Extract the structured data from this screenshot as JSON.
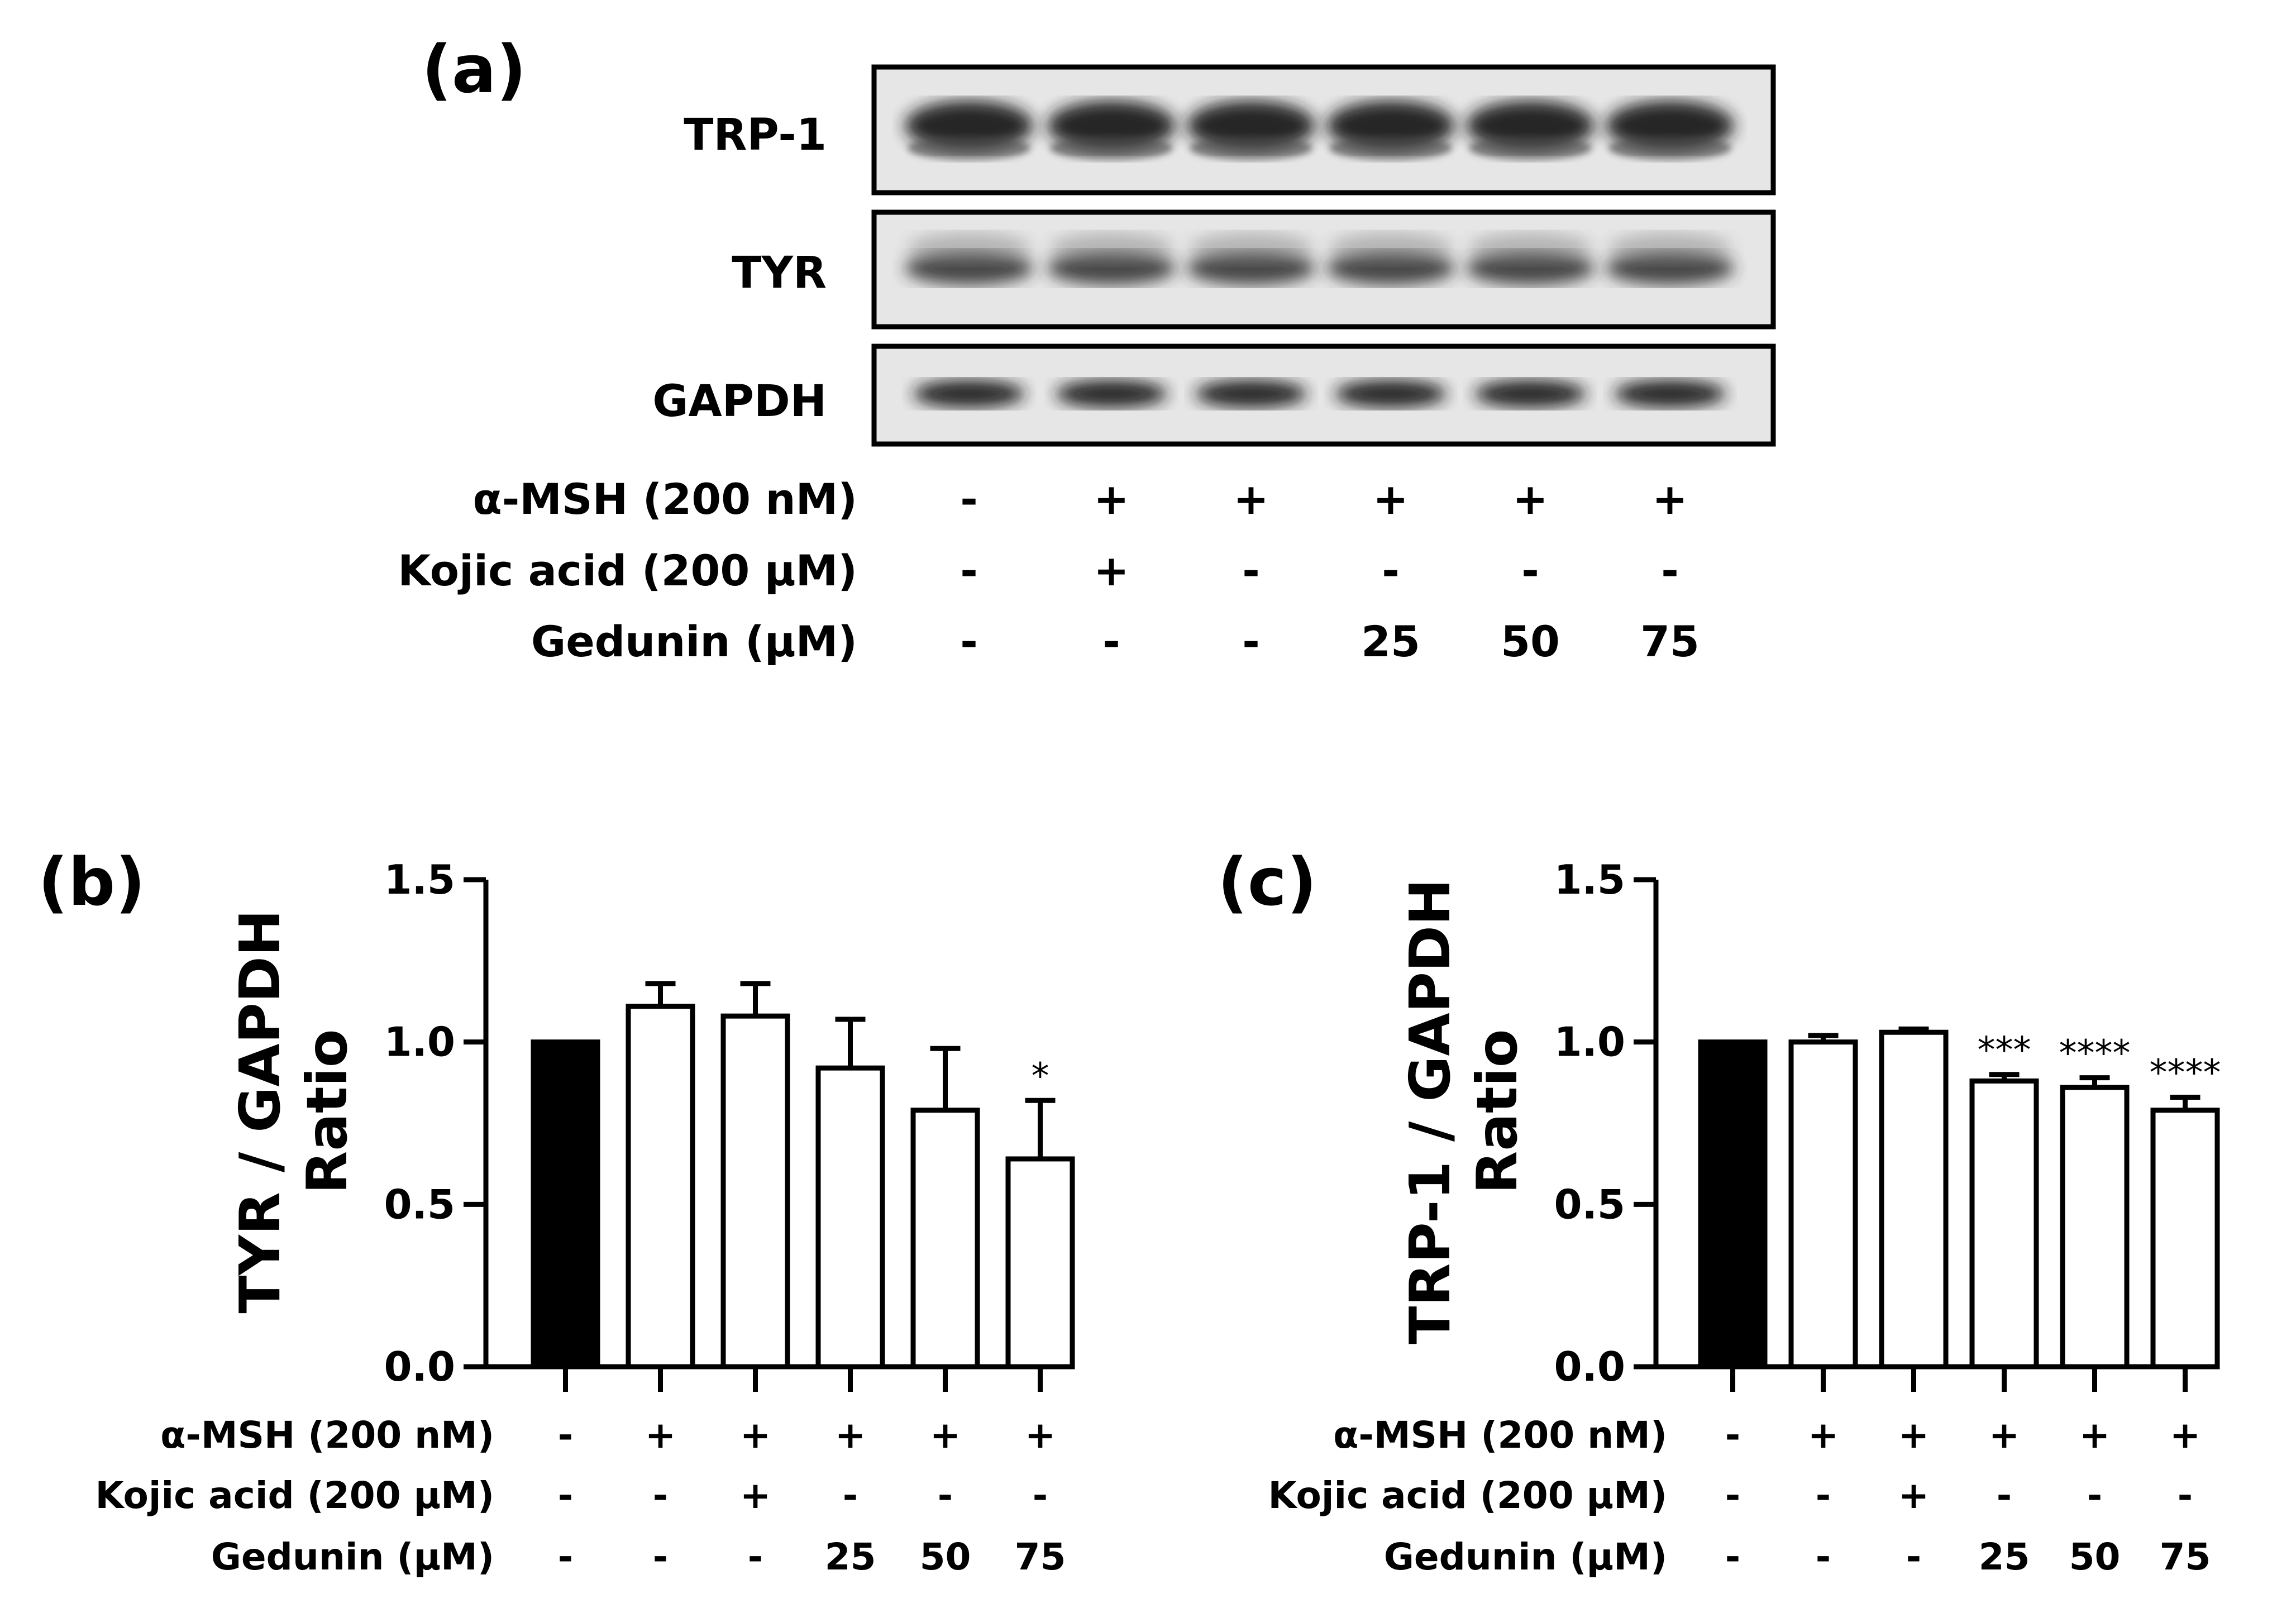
{
  "panel_a": {
    "label": "(a)",
    "blots": [
      {
        "name": "TRP-1"
      },
      {
        "name": "TYR"
      },
      {
        "name": "GAPDH"
      }
    ],
    "conditions": [
      {
        "label": "α-MSH (200 nM)",
        "values": [
          "-",
          "+",
          "+",
          "+",
          "+",
          "+"
        ]
      },
      {
        "label": "Kojic acid (200 µM)",
        "values": [
          "-",
          "+",
          "-",
          "-",
          "-",
          "-"
        ]
      },
      {
        "label": "Gedunin (µM)",
        "values": [
          "-",
          "-",
          "-",
          "25",
          "50",
          "75"
        ]
      }
    ]
  },
  "chart_data": [
    {
      "panel_label": "(b)",
      "type": "bar",
      "ylabel_line1": "TYR / GAPDH",
      "ylabel_line2": "Ratio",
      "ylim": [
        0,
        1.5
      ],
      "yticks": [
        "0.0",
        "0.5",
        "1.0",
        "1.5"
      ],
      "ytick_values": [
        0,
        0.5,
        1.0,
        1.5
      ],
      "values": [
        1.0,
        1.11,
        1.08,
        0.92,
        0.79,
        0.64
      ],
      "errors": [
        0,
        0.07,
        0.1,
        0.15,
        0.19,
        0.18
      ],
      "fills": [
        "#000000",
        "#ffffff",
        "#ffffff",
        "#ffffff",
        "#ffffff",
        "#ffffff"
      ],
      "significance": [
        "",
        "",
        "",
        "",
        "",
        "*"
      ],
      "conditions": [
        {
          "label": "α-MSH (200 nM)",
          "values": [
            "-",
            "+",
            "+",
            "+",
            "+",
            "+"
          ]
        },
        {
          "label": "Kojic acid (200 µM)",
          "values": [
            "-",
            "-",
            "+",
            "-",
            "-",
            "-"
          ]
        },
        {
          "label": "Gedunin  (µM)",
          "values": [
            "-",
            "-",
            "-",
            "25",
            "50",
            "75"
          ]
        }
      ]
    },
    {
      "panel_label": "(c)",
      "type": "bar",
      "ylabel_line1": "TRP-1 / GAPDH",
      "ylabel_line2": "Ratio",
      "ylim": [
        0,
        1.5
      ],
      "yticks": [
        "0.0",
        "0.5",
        "1.0",
        "1.5"
      ],
      "ytick_values": [
        0,
        0.5,
        1.0,
        1.5
      ],
      "values": [
        1.0,
        1.0,
        1.03,
        0.88,
        0.86,
        0.79
      ],
      "errors": [
        0,
        0.02,
        0.01,
        0.02,
        0.03,
        0.04
      ],
      "fills": [
        "#000000",
        "#ffffff",
        "#ffffff",
        "#ffffff",
        "#ffffff",
        "#ffffff"
      ],
      "significance": [
        "",
        "",
        "",
        "***",
        "****",
        "****"
      ],
      "conditions": [
        {
          "label": "α-MSH (200 nM)",
          "values": [
            "-",
            "+",
            "+",
            "+",
            "+",
            "+"
          ]
        },
        {
          "label": "Kojic acid (200 µM)",
          "values": [
            "-",
            "-",
            "+",
            "-",
            "-",
            "-"
          ]
        },
        {
          "label": "Gedunin  (µM)",
          "values": [
            "-",
            "-",
            "-",
            "25",
            "50",
            "75"
          ]
        }
      ]
    }
  ]
}
